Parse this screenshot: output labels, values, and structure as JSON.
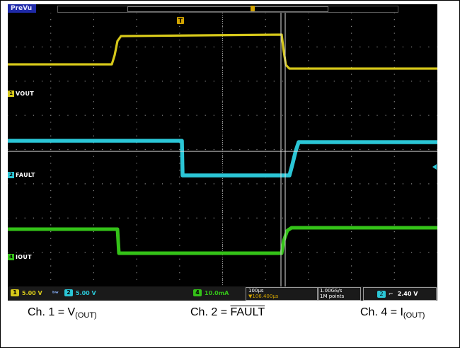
{
  "scope": {
    "mode_label": "PreVu",
    "trigger_marker": "T",
    "channels": [
      {
        "id": "1",
        "label": "VOUT",
        "color": "#d6c81a"
      },
      {
        "id": "2",
        "label": "FAULT",
        "color": "#2bc6d6"
      },
      {
        "id": "4",
        "label": "IOUT",
        "color": "#34c218"
      }
    ],
    "status": {
      "ch1_scale": "5.00 V",
      "ch2_scale": "5.00 V",
      "ch4_scale": "10.0mA",
      "timebase": "100µs",
      "trigger_offset": "▼106.400µs",
      "sample_rate": "1.00GS/s",
      "record_length": "1M points",
      "trigger_channel": "2",
      "trigger_slope": "⌐",
      "trigger_level": "2.40 V"
    }
  },
  "captions": {
    "ch1_prefix": "Ch. 1 = V",
    "ch1_sub": "(OUT)",
    "ch2_prefix": "Ch. 2 = ",
    "ch2_over": "FAULT",
    "ch4_prefix": "Ch. 4 = I",
    "ch4_sub": "(OUT)"
  }
}
